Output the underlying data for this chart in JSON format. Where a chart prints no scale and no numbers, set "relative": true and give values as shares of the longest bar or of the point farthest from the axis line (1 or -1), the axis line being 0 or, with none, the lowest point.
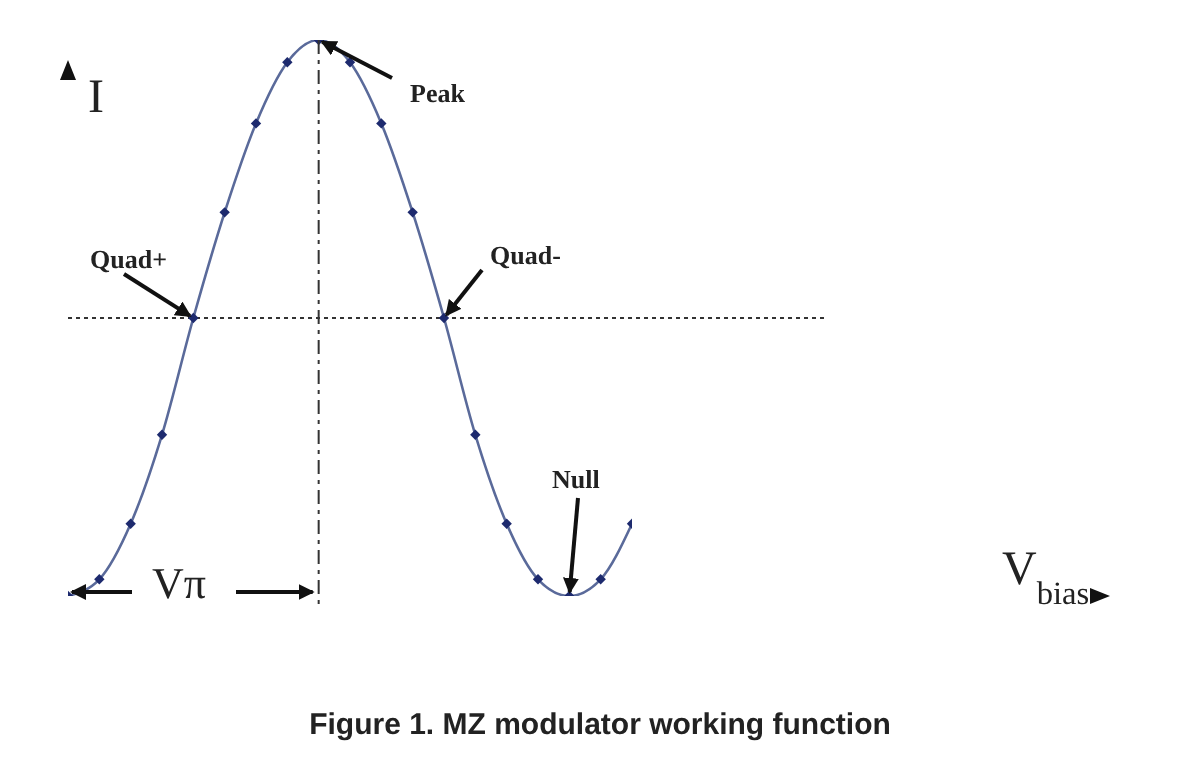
{
  "chart_data": {
    "type": "line",
    "title": "Figure 1. MZ modulator working function",
    "ylabel": "I",
    "relative": true,
    "categories": [
      null,
      null,
      null,
      null,
      null,
      null,
      null,
      null,
      null,
      null,
      null,
      null,
      null,
      null,
      null,
      null,
      null,
      null,
      null
    ],
    "series": [
      {
        "color": "#5a6a9a",
        "values": [
          0,
          0.03,
          0.13,
          0.29,
          0.5,
          0.69,
          0.85,
          0.96,
          1,
          0.96,
          0.85,
          0.69,
          0.5,
          0.29,
          0.13,
          0.03,
          0,
          0.03,
          0.13
        ]
      }
    ],
    "marker": "diamond",
    "ref_lines": [
      {
        "axis": "y",
        "value": 0.5,
        "line_style": "dotted",
        "color": "#333333"
      }
    ],
    "annotations": [
      "Peak",
      "Quad+",
      "Quad-",
      "Null",
      "Vπ",
      "V$_{bias}$"
    ]
  }
}
